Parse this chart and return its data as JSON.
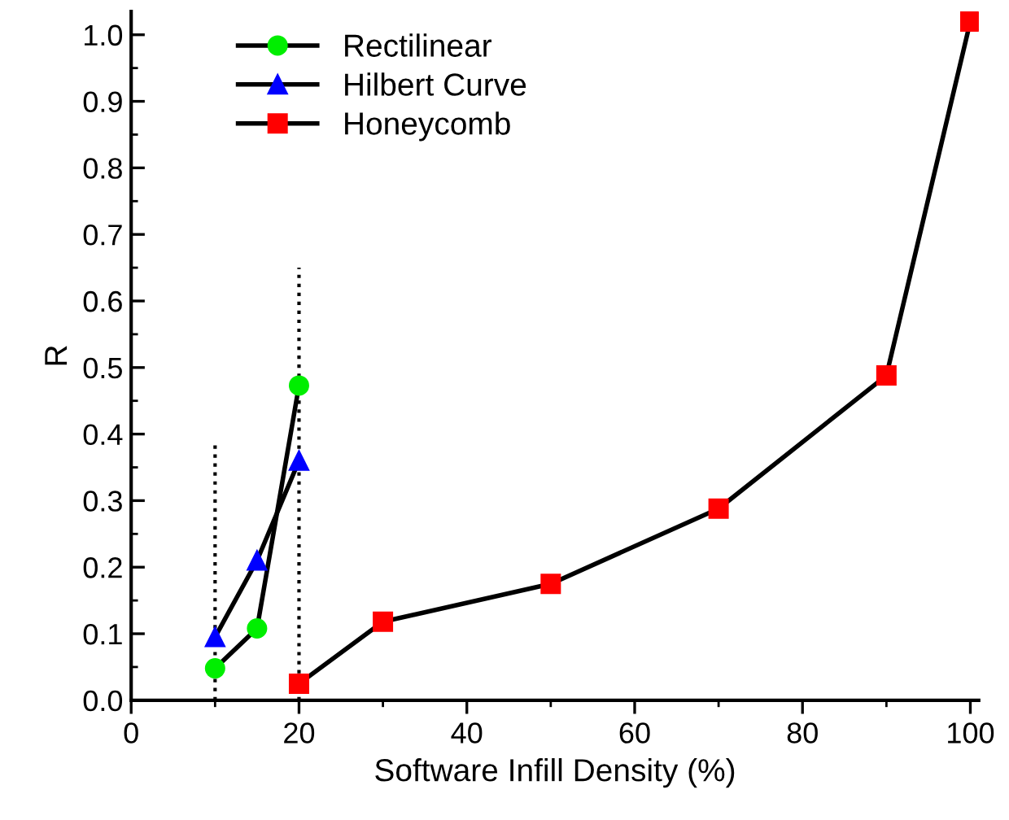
{
  "chart_data": {
    "type": "line",
    "xlabel": "Software Infill Density (%)",
    "ylabel": "R",
    "xlim": [
      0,
      101
    ],
    "ylim": [
      0,
      1.035
    ],
    "xticks": [
      0,
      {
        "value": 10,
        "label": null
      },
      20,
      {
        "value": 30,
        "label": null
      },
      40,
      {
        "value": 50,
        "label": null
      },
      60,
      {
        "value": 70,
        "label": null
      },
      80,
      {
        "value": 90,
        "label": null
      },
      100
    ],
    "yticks": [
      {
        "value": 0,
        "label": "0.0"
      },
      {
        "value": 0.05,
        "label": null
      },
      {
        "value": 0.1,
        "label": "0.1"
      },
      {
        "value": 0.15,
        "label": null
      },
      {
        "value": 0.2,
        "label": "0.2"
      },
      {
        "value": 0.25,
        "label": null
      },
      {
        "value": 0.3,
        "label": "0.3"
      },
      {
        "value": 0.35,
        "label": null
      },
      {
        "value": 0.4,
        "label": "0.4"
      },
      {
        "value": 0.45,
        "label": null
      },
      {
        "value": 0.5,
        "label": "0.5"
      },
      {
        "value": 0.55,
        "label": null
      },
      {
        "value": 0.6,
        "label": "0.6"
      },
      {
        "value": 0.65,
        "label": null
      },
      {
        "value": 0.7,
        "label": "0.7"
      },
      {
        "value": 0.75,
        "label": null
      },
      {
        "value": 0.8,
        "label": "0.8"
      },
      {
        "value": 0.85,
        "label": null
      },
      {
        "value": 0.9,
        "label": "0.9"
      },
      {
        "value": 0.95,
        "label": null
      },
      {
        "value": 1.0,
        "label": "1.0"
      }
    ],
    "grid": false,
    "legend": "top left",
    "series": [
      {
        "x": [
          10,
          10
        ],
        "values": [
          0,
          0.39
        ],
        "color": "#000000",
        "marker": "none",
        "line_style": "dotted"
      },
      {
        "x": [
          20,
          20
        ],
        "values": [
          0,
          0.65
        ],
        "color": "#000000",
        "marker": "none",
        "line_style": "dotted"
      },
      {
        "name": "Rectilinear",
        "x": [
          10,
          15,
          20
        ],
        "values": [
          0.048,
          0.108,
          0.473
        ],
        "color": "#00ee00",
        "marker": "circle",
        "line_style": "solid"
      },
      {
        "name": "Hilbert Curve",
        "x": [
          10,
          15,
          20
        ],
        "values": [
          0.095,
          0.21,
          0.36
        ],
        "color": "#0000ff",
        "marker": "triangle",
        "line_style": "solid"
      },
      {
        "name": "Honeycomb",
        "x": [
          20,
          30,
          50,
          70,
          90,
          100
        ],
        "values": [
          0.025,
          0.118,
          0.175,
          0.288,
          0.488,
          1.02
        ],
        "color": "#ff0000",
        "marker": "square",
        "line_style": "solid"
      }
    ]
  }
}
